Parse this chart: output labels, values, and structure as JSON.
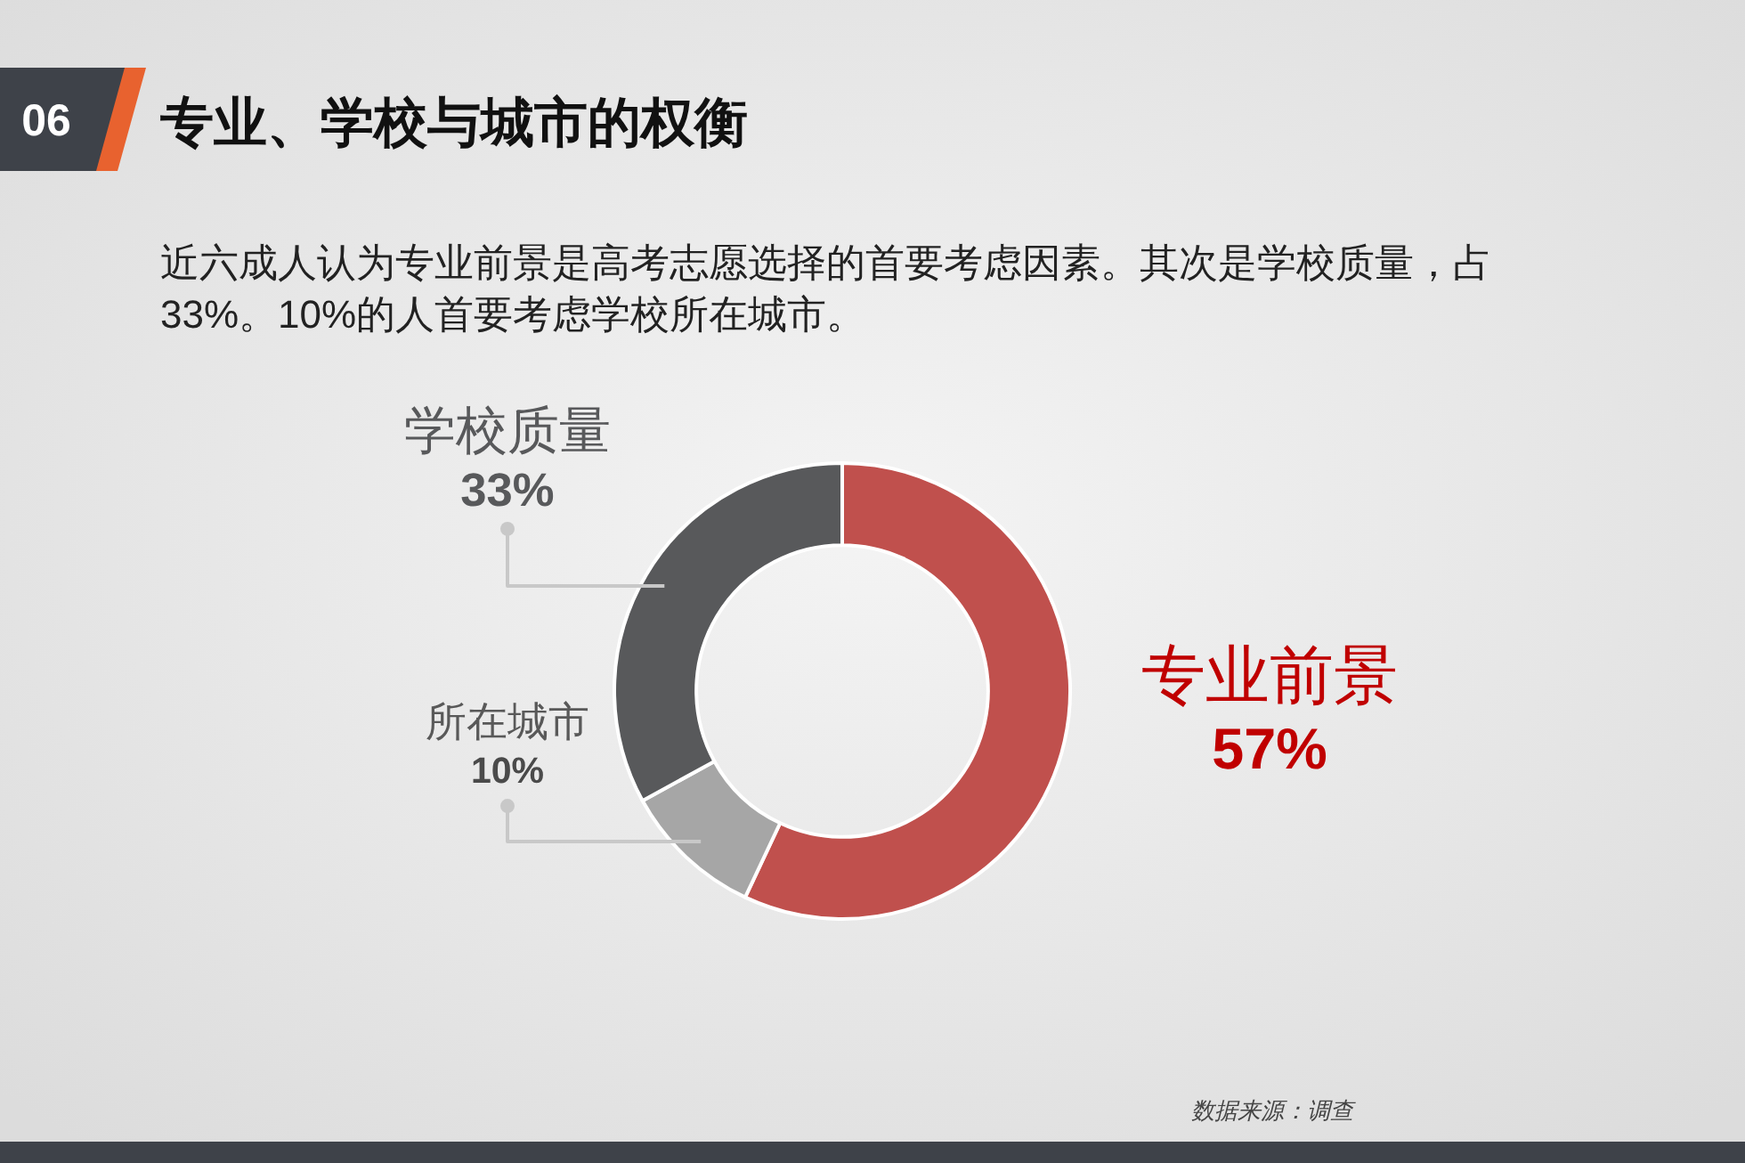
{
  "chart_data": {
    "type": "donut",
    "title": "专业、学校与城市的权衡",
    "subtitle": "近六成人认为专业前景是高考志愿选择的首要考虑因素。其次是学校质量，占33%。10%的人首要考虑学校所在城市。",
    "categories": [
      "专业前景",
      "所在城市",
      "学校质量"
    ],
    "values": [
      57,
      10,
      33
    ],
    "colors": [
      "#c0504d",
      "#a6a6a6",
      "#58595b"
    ],
    "value_labels": [
      "57%",
      "10%",
      "33%"
    ],
    "annotations": [
      "06",
      "数据来源：调查"
    ]
  }
}
